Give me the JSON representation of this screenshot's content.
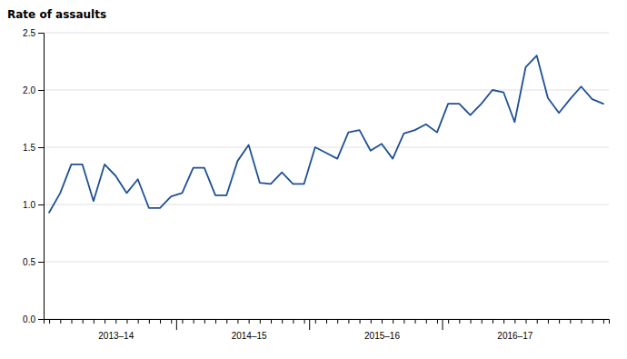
{
  "chart_data": {
    "type": "line",
    "ylabel": "Rate of assaults",
    "categories": [
      null,
      null,
      null,
      null,
      null,
      null,
      "2013–14",
      null,
      null,
      null,
      null,
      null,
      null,
      null,
      null,
      null,
      null,
      null,
      "2014–15",
      null,
      null,
      null,
      null,
      null,
      null,
      null,
      null,
      null,
      null,
      null,
      "2015–16",
      null,
      null,
      null,
      null,
      null,
      null,
      null,
      null,
      null,
      null,
      null,
      "2016–17",
      null,
      null,
      null,
      null,
      null,
      null,
      null,
      null
    ],
    "values": [
      0.93,
      1.1,
      1.35,
      1.35,
      1.03,
      1.35,
      1.25,
      1.1,
      1.22,
      0.97,
      0.97,
      1.07,
      1.1,
      1.32,
      1.32,
      1.08,
      1.08,
      1.38,
      1.52,
      1.19,
      1.18,
      1.28,
      1.18,
      1.18,
      1.5,
      1.45,
      1.4,
      1.63,
      1.65,
      1.47,
      1.53,
      1.4,
      1.62,
      1.65,
      1.7,
      1.63,
      1.88,
      1.88,
      1.78,
      1.88,
      2.0,
      1.98,
      1.72,
      2.2,
      2.3,
      1.93,
      1.8,
      1.92,
      2.03,
      1.92,
      1.88
    ],
    "color": "#1f5096",
    "ylim": [
      0.0,
      2.5
    ],
    "yticks": [
      {
        "value": 0.0,
        "label": "0.0"
      },
      0.5,
      {
        "value": 1.0,
        "label": "1.0"
      },
      1.5,
      {
        "value": 2.0,
        "label": "2.0"
      },
      2.5
    ],
    "grid": true
  }
}
